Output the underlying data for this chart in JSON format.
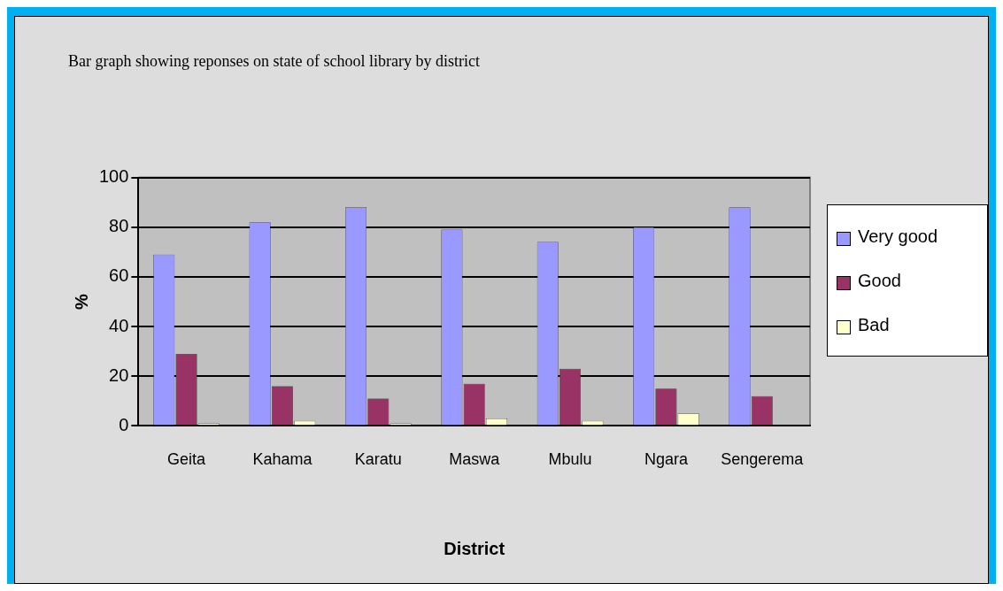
{
  "chart_data": {
    "type": "bar",
    "title": "Bar graph showing reponses on state of school library by district",
    "xlabel": "District",
    "ylabel": "%",
    "categories": [
      "Geita",
      "Kahama",
      "Karatu",
      "Maswa",
      "Mbulu",
      "Ngara",
      "Sengerema"
    ],
    "series": [
      {
        "name": "Very good",
        "color": "#9999ff",
        "values": [
          69,
          82,
          88,
          79,
          74,
          80,
          88
        ]
      },
      {
        "name": "Good",
        "color": "#993366",
        "values": [
          29,
          16,
          11,
          17,
          23,
          15,
          12
        ]
      },
      {
        "name": "Bad",
        "color": "#ffffcc",
        "values": [
          1,
          2,
          1,
          3,
          2,
          5,
          0
        ]
      }
    ],
    "ylim": [
      0,
      100
    ],
    "yticks": [
      0,
      20,
      40,
      60,
      80,
      100
    ],
    "grid": "y",
    "legend": "right"
  }
}
